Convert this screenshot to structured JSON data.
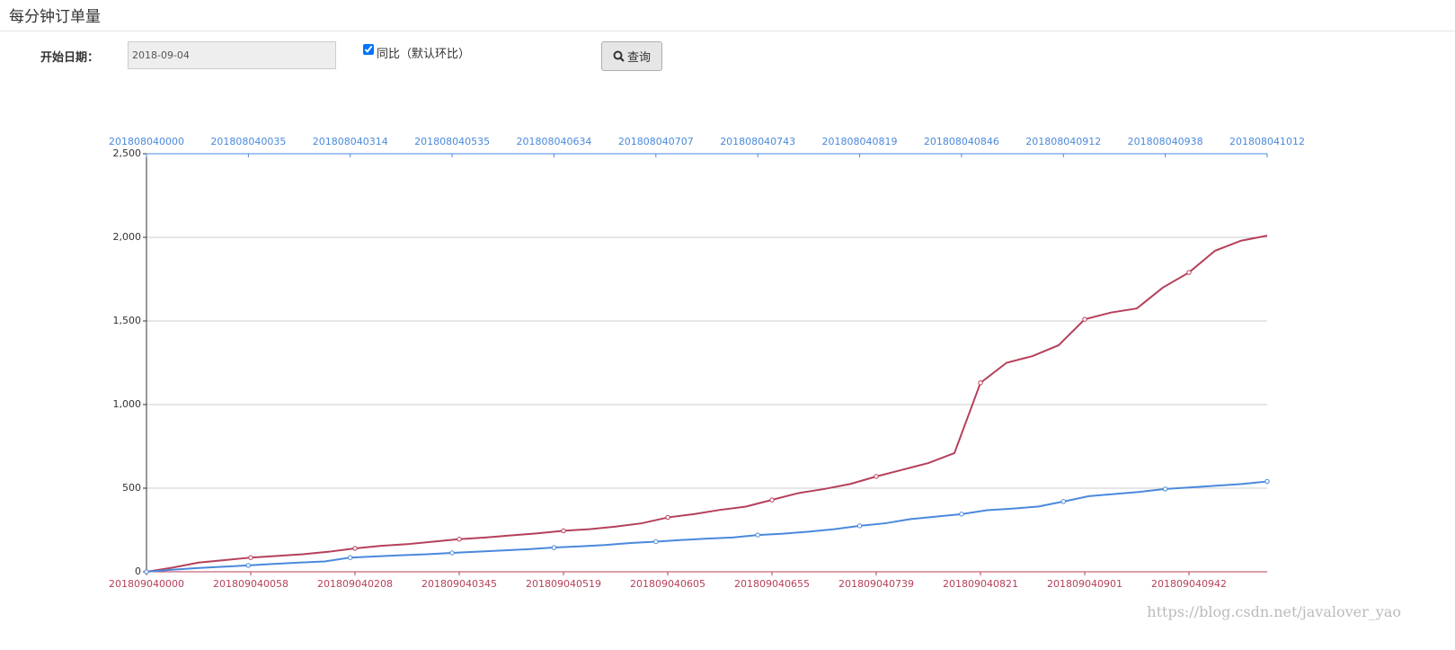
{
  "header": {
    "title": "每分钟订单量"
  },
  "form": {
    "date_label": "开始日期：",
    "date_value": "2018-09-04",
    "checkbox_label": "同比（默认环比）",
    "checkbox_checked": true,
    "button_label": "查询"
  },
  "watermark": "https://blog.csdn.net/javalover_yao",
  "chart_data": {
    "type": "line",
    "ylim": [
      0,
      2500
    ],
    "yticks": [
      0,
      500,
      {
        "value": 1000,
        "label": "1,000"
      },
      {
        "value": 1500,
        "label": "1,500"
      },
      {
        "value": 2000,
        "label": "2,000"
      },
      {
        "value": 2500,
        "label": "2,500"
      }
    ],
    "grid": true,
    "series": [
      {
        "color": "#b5405a",
        "axis": "bottom",
        "categories": [
          "201809040000",
          null,
          null,
          null,
          "201809040058",
          null,
          null,
          null,
          "201809040208",
          null,
          null,
          null,
          "201809040345",
          null,
          null,
          null,
          "201809040519",
          null,
          null,
          null,
          "201809040605",
          null,
          null,
          null,
          "201809040655",
          null,
          null,
          null,
          "201809040739",
          null,
          null,
          null,
          "201809040821",
          null,
          null,
          null,
          "201809040901",
          null,
          null,
          null,
          "201809040942",
          null,
          null,
          null
        ],
        "values": [
          0,
          25,
          55,
          70,
          85,
          95,
          105,
          120,
          140,
          155,
          165,
          180,
          195,
          205,
          218,
          230,
          245,
          255,
          270,
          290,
          325,
          345,
          370,
          390,
          430,
          470,
          495,
          525,
          570,
          610,
          650,
          710,
          1130,
          1250,
          1290,
          1355,
          1510,
          1550,
          1575,
          1700,
          1790,
          1920,
          1980,
          2010
        ]
      },
      {
        "color": "#4a89dc",
        "axis": "top",
        "categories": [
          "201808040000",
          null,
          null,
          null,
          "201808040035",
          null,
          null,
          null,
          "201808040314",
          null,
          null,
          null,
          "201808040535",
          null,
          null,
          null,
          "201808040634",
          null,
          null,
          null,
          "201808040707",
          null,
          null,
          null,
          "201808040743",
          null,
          null,
          null,
          "201808040819",
          null,
          null,
          null,
          "201808040846",
          null,
          null,
          null,
          "201808040912",
          null,
          null,
          null,
          "201808040938",
          null,
          null,
          null,
          "201808041012"
        ],
        "values": [
          0,
          12,
          22,
          30,
          38,
          47,
          55,
          62,
          85,
          92,
          99,
          105,
          113,
          120,
          128,
          135,
          145,
          152,
          160,
          172,
          180,
          190,
          198,
          205,
          220,
          228,
          240,
          255,
          275,
          290,
          315,
          330,
          345,
          368,
          378,
          390,
          420,
          452,
          465,
          478,
          495,
          505,
          515,
          525,
          540
        ]
      }
    ]
  }
}
